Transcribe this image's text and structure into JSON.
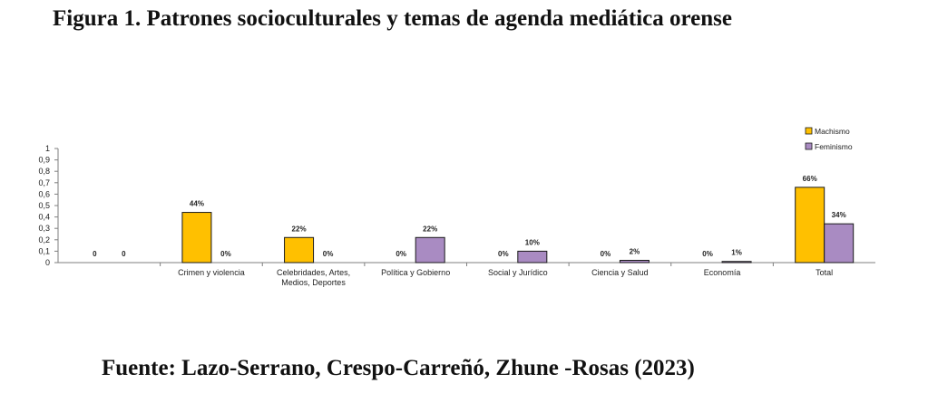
{
  "figure": {
    "title": "Figura 1. Patrones socioculturales y temas de agenda mediática orense",
    "source": "Fuente: Lazo-Serrano, Crespo-Carreñó, Zhune -Rosas (2023)"
  },
  "colors": {
    "machismo": "#FFC000",
    "feminismo": "#A98BC2",
    "axis": "#7f7f7f"
  },
  "chart_data": {
    "type": "bar",
    "categories": [
      [
        ""
      ],
      [
        "Crimen y violencia"
      ],
      [
        "Celebridades, Artes,",
        "Medios, Deportes"
      ],
      [
        "Política y Gobierno"
      ],
      [
        "Social y Jurídico"
      ],
      [
        "Ciencia y Salud"
      ],
      [
        "Economía"
      ],
      [
        "Total"
      ]
    ],
    "series": [
      {
        "name": "Machismo",
        "values": [
          0,
          0.44,
          0.22,
          0,
          0,
          0,
          0,
          0.66
        ],
        "labels": [
          "0",
          "44%",
          "22%",
          "0%",
          "0%",
          "0%",
          "0%",
          "66%"
        ]
      },
      {
        "name": "Feminismo",
        "values": [
          0,
          0,
          0,
          0.22,
          0.1,
          0.02,
          0.01,
          0.34
        ],
        "labels": [
          "0",
          "0%",
          "0%",
          "22%",
          "10%",
          "2%",
          "1%",
          "34%"
        ]
      }
    ],
    "yticks": [
      "0",
      "0,1",
      "0,2",
      "0,3",
      "0,4",
      "0,5",
      "0,6",
      "0,7",
      "0,8",
      "0,9",
      "1"
    ],
    "ylim": [
      0,
      1
    ],
    "legend": "top-right",
    "grid": false
  }
}
